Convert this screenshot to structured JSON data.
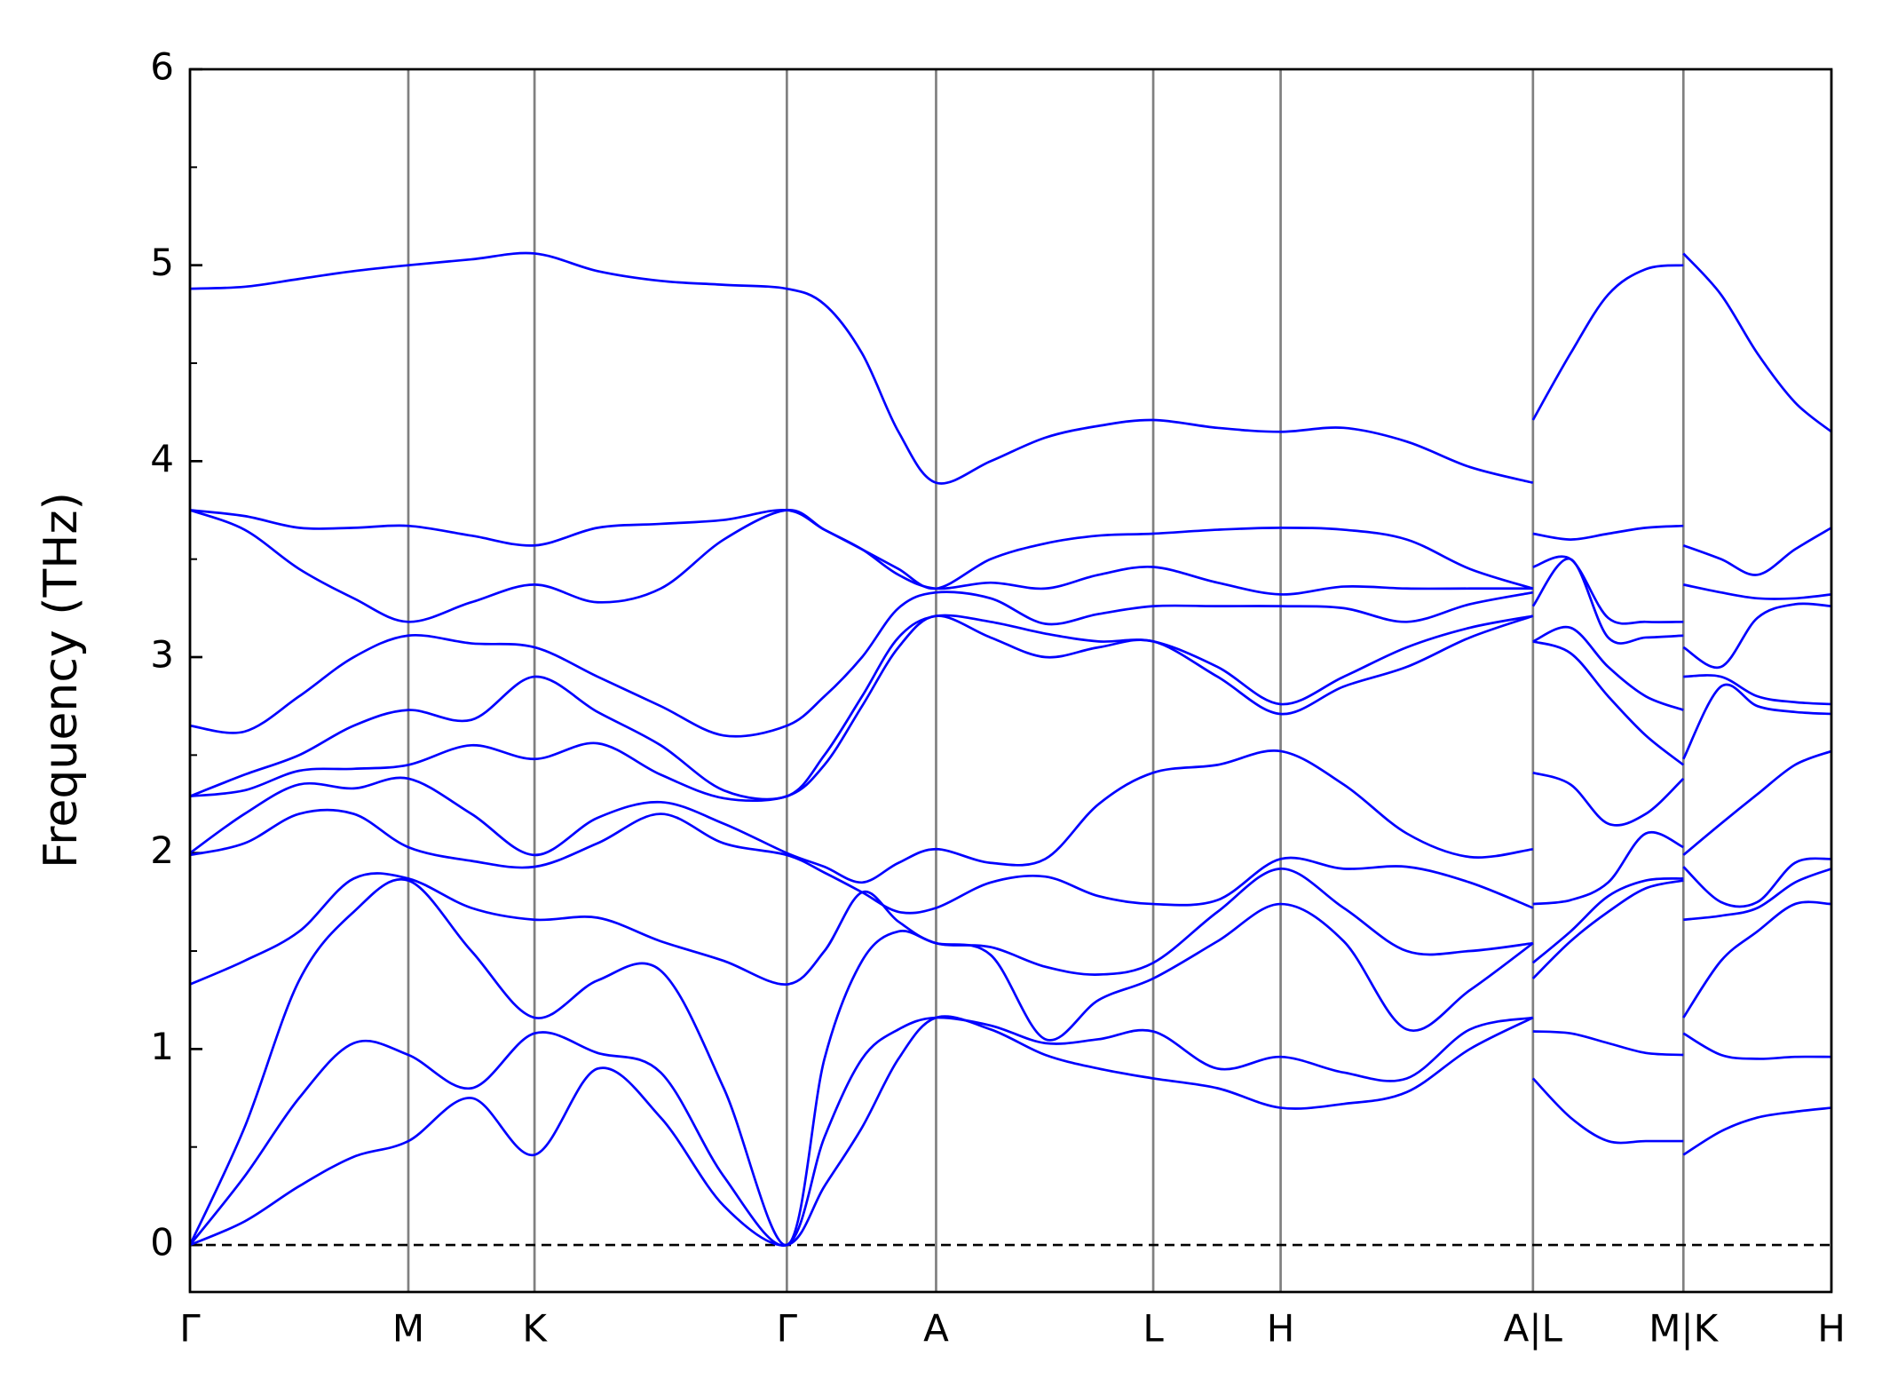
{
  "chart_data": {
    "type": "line",
    "y_label": "Frequency (THz)",
    "x": [
      0,
      0.45,
      0.9,
      1.35,
      1.8,
      2.32,
      2.84,
      3.36,
      3.88,
      4.4,
      4.92,
      5.23,
      5.54,
      5.84,
      6.15,
      6.6,
      7.05,
      7.49,
      7.94,
      8.47,
      8.99,
      9.51,
      10.03,
      10.55,
      11.07,
      11.07,
      11.07,
      11.38,
      11.69,
      12.0,
      12.31,
      12.31,
      12.31,
      12.62,
      12.92,
      13.23,
      13.53
    ],
    "series": [
      {
        "color": "#0000ff",
        "values": [
          0,
          0.12,
          0.3,
          0.45,
          0.53,
          0.75,
          0.46,
          0.9,
          0.65,
          0.2,
          0,
          0.3,
          0.6,
          0.95,
          1.16,
          1.1,
          0.97,
          0.9,
          0.85,
          0.8,
          0.7,
          0.72,
          0.78,
          1.0,
          1.16,
          null,
          0.85,
          0.65,
          0.53,
          0.53,
          0.53,
          null,
          0.46,
          0.58,
          0.65,
          0.68,
          0.7
        ]
      },
      {
        "color": "#0000ff",
        "values": [
          0,
          0.35,
          0.75,
          1.03,
          0.97,
          0.8,
          1.08,
          0.98,
          0.88,
          0.35,
          0,
          0.55,
          0.95,
          1.1,
          1.16,
          1.12,
          1.03,
          1.05,
          1.09,
          0.9,
          0.96,
          0.88,
          0.85,
          1.1,
          1.16,
          null,
          1.09,
          1.08,
          1.03,
          0.98,
          0.97,
          null,
          1.08,
          0.97,
          0.95,
          0.96,
          0.96
        ]
      },
      {
        "color": "#0000ff",
        "values": [
          0,
          0.6,
          1.35,
          1.7,
          1.86,
          1.5,
          1.16,
          1.35,
          1.4,
          0.8,
          0,
          0.95,
          1.45,
          1.6,
          1.54,
          1.48,
          1.05,
          1.25,
          1.36,
          1.55,
          1.74,
          1.55,
          1.1,
          1.3,
          1.54,
          null,
          1.36,
          1.55,
          1.7,
          1.82,
          1.86,
          null,
          1.16,
          1.45,
          1.6,
          1.74,
          1.74
        ]
      },
      {
        "color": "#0000ff",
        "values": [
          1.33,
          1.45,
          1.6,
          1.87,
          1.87,
          1.72,
          1.66,
          1.67,
          1.55,
          1.45,
          1.33,
          1.5,
          1.8,
          1.65,
          1.54,
          1.52,
          1.42,
          1.38,
          1.44,
          1.7,
          1.92,
          1.72,
          1.5,
          1.5,
          1.54,
          null,
          1.44,
          1.6,
          1.78,
          1.86,
          1.87,
          null,
          1.66,
          1.68,
          1.72,
          1.85,
          1.92
        ]
      },
      {
        "color": "#0000ff",
        "values": [
          1.99,
          2.05,
          2.2,
          2.2,
          2.03,
          1.96,
          1.93,
          2.05,
          2.2,
          2.05,
          1.99,
          1.9,
          1.8,
          1.7,
          1.72,
          1.85,
          1.88,
          1.78,
          1.74,
          1.76,
          1.97,
          1.92,
          1.93,
          1.85,
          1.72,
          null,
          1.74,
          1.76,
          1.85,
          2.1,
          2.03,
          null,
          1.93,
          1.75,
          1.75,
          1.95,
          1.97
        ]
      },
      {
        "color": "#0000ff",
        "values": [
          2.0,
          2.2,
          2.35,
          2.33,
          2.38,
          2.2,
          1.99,
          2.18,
          2.26,
          2.15,
          2.0,
          1.93,
          1.85,
          1.95,
          2.02,
          1.95,
          1.97,
          2.25,
          2.41,
          2.45,
          2.52,
          2.35,
          2.1,
          1.98,
          2.02,
          null,
          2.41,
          2.35,
          2.15,
          2.2,
          2.38,
          null,
          1.99,
          2.15,
          2.3,
          2.45,
          2.52
        ]
      },
      {
        "color": "#0000ff",
        "values": [
          2.29,
          2.32,
          2.42,
          2.43,
          2.45,
          2.55,
          2.48,
          2.56,
          2.4,
          2.28,
          2.29,
          2.45,
          2.75,
          3.05,
          3.21,
          3.1,
          3.0,
          3.05,
          3.08,
          2.9,
          2.71,
          2.85,
          2.95,
          3.1,
          3.21,
          null,
          3.08,
          3.02,
          2.8,
          2.6,
          2.45,
          null,
          2.48,
          2.85,
          2.75,
          2.72,
          2.71
        ]
      },
      {
        "color": "#0000ff",
        "values": [
          2.29,
          2.4,
          2.5,
          2.65,
          2.73,
          2.68,
          2.9,
          2.72,
          2.55,
          2.32,
          2.29,
          2.5,
          2.8,
          3.1,
          3.21,
          3.18,
          3.12,
          3.08,
          3.08,
          2.95,
          2.76,
          2.9,
          3.05,
          3.15,
          3.21,
          null,
          3.08,
          3.15,
          2.95,
          2.8,
          2.73,
          null,
          2.9,
          2.9,
          2.8,
          2.77,
          2.76
        ]
      },
      {
        "color": "#0000ff",
        "values": [
          2.65,
          2.62,
          2.8,
          3.0,
          3.11,
          3.07,
          3.05,
          2.9,
          2.75,
          2.6,
          2.65,
          2.8,
          3.0,
          3.25,
          3.33,
          3.3,
          3.17,
          3.22,
          3.26,
          3.26,
          3.26,
          3.25,
          3.18,
          3.27,
          3.33,
          null,
          3.26,
          3.5,
          3.1,
          3.1,
          3.11,
          null,
          3.05,
          2.95,
          3.2,
          3.27,
          3.26
        ]
      },
      {
        "color": "#0000ff",
        "values": [
          3.75,
          3.65,
          3.45,
          3.3,
          3.18,
          3.28,
          3.37,
          3.28,
          3.35,
          3.6,
          3.75,
          3.65,
          3.55,
          3.42,
          3.35,
          3.38,
          3.35,
          3.42,
          3.46,
          3.38,
          3.32,
          3.36,
          3.35,
          3.35,
          3.35,
          null,
          3.46,
          3.5,
          3.2,
          3.18,
          3.18,
          null,
          3.37,
          3.33,
          3.3,
          3.3,
          3.32
        ]
      },
      {
        "color": "#0000ff",
        "values": [
          3.75,
          3.72,
          3.66,
          3.66,
          3.67,
          3.62,
          3.57,
          3.66,
          3.68,
          3.7,
          3.75,
          3.65,
          3.55,
          3.45,
          3.35,
          3.5,
          3.58,
          3.62,
          3.63,
          3.65,
          3.66,
          3.65,
          3.6,
          3.45,
          3.35,
          null,
          3.63,
          3.6,
          3.63,
          3.66,
          3.67,
          null,
          3.57,
          3.5,
          3.42,
          3.55,
          3.66
        ]
      },
      {
        "color": "#0000ff",
        "values": [
          4.88,
          4.89,
          4.93,
          4.97,
          5.0,
          5.03,
          5.06,
          4.97,
          4.92,
          4.9,
          4.88,
          4.8,
          4.55,
          4.15,
          3.89,
          4.0,
          4.12,
          4.18,
          4.21,
          4.17,
          4.15,
          4.17,
          4.1,
          3.97,
          3.89,
          null,
          4.21,
          4.55,
          4.85,
          4.98,
          5.0,
          null,
          5.06,
          4.85,
          4.55,
          4.3,
          4.15
        ]
      }
    ],
    "xlim": [
      0,
      13.53
    ],
    "ylim": [
      -0.24,
      6
    ],
    "xticks": [
      {
        "value": 0,
        "label": "Γ"
      },
      {
        "value": 1.8,
        "label": "M"
      },
      {
        "value": 2.84,
        "label": "K"
      },
      {
        "value": 4.92,
        "label": "Γ"
      },
      {
        "value": 6.15,
        "label": "A"
      },
      {
        "value": 7.94,
        "label": "L"
      },
      {
        "value": 8.99,
        "label": "H"
      },
      {
        "value": 11.07,
        "label": "A|L"
      },
      {
        "value": 12.31,
        "label": "M|K"
      },
      {
        "value": 13.53,
        "label": "H"
      }
    ],
    "yticks": [
      0,
      1,
      2,
      3,
      4,
      5,
      6
    ],
    "yminorticks": [
      0.5,
      1.5,
      2.5,
      3.5,
      4.5,
      5.5
    ],
    "xtick_vlines": true,
    "vline_color": "#808080",
    "hlines": [
      0
    ]
  }
}
